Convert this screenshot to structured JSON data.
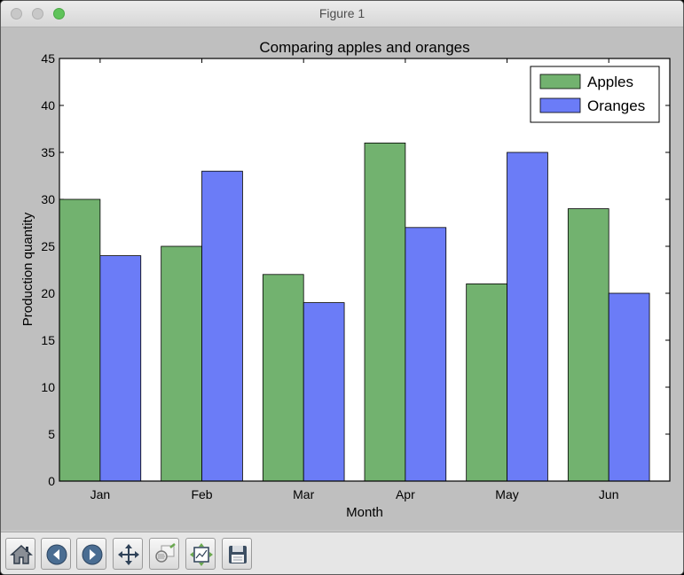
{
  "window": {
    "title": "Figure 1"
  },
  "toolbar": {
    "buttons": [
      {
        "name": "home-button",
        "icon": "home-icon"
      },
      {
        "name": "back-button",
        "icon": "arrow-left-icon"
      },
      {
        "name": "forward-button",
        "icon": "arrow-right-icon"
      },
      {
        "name": "pan-button",
        "icon": "move-icon"
      },
      {
        "name": "zoom-button",
        "icon": "zoom-rect-icon"
      },
      {
        "name": "subplots-button",
        "icon": "subplots-icon"
      },
      {
        "name": "save-button",
        "icon": "floppy-disk-icon"
      }
    ]
  },
  "chart_data": {
    "type": "bar",
    "title": "Comparing apples and oranges",
    "xlabel": "Month",
    "ylabel": "Production quantity",
    "categories": [
      "Jan",
      "Feb",
      "Mar",
      "Apr",
      "May",
      "Jun"
    ],
    "series": [
      {
        "name": "Apples",
        "values": [
          30,
          25,
          22,
          36,
          21,
          29
        ],
        "color": "#72b26f"
      },
      {
        "name": "Oranges",
        "values": [
          24,
          33,
          19,
          27,
          35,
          20
        ],
        "color": "#6b7cf7"
      }
    ],
    "ylim": [
      0,
      45
    ],
    "yticks": [
      0,
      5,
      10,
      15,
      20,
      25,
      30,
      35,
      40,
      45
    ],
    "grid": false,
    "legend_position": "top-right"
  }
}
